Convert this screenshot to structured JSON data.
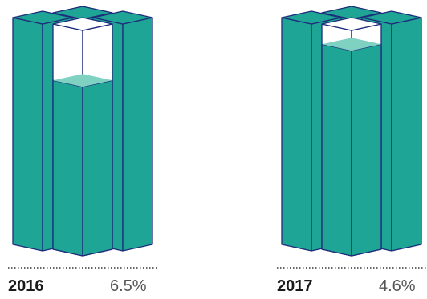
{
  "colors": {
    "teal": "#1fa595",
    "teal_light": "#7fd1c2",
    "outline": "#1d2b7a",
    "empty": "#ffffff"
  },
  "chart_data": [
    {
      "type": "bar",
      "label": "2016",
      "value_label": "6.5%",
      "value": 6.5,
      "fill_fraction": 0.75
    },
    {
      "type": "bar",
      "label": "2017",
      "value_label": "4.6%",
      "value": 4.6,
      "fill_fraction": 0.91
    }
  ]
}
